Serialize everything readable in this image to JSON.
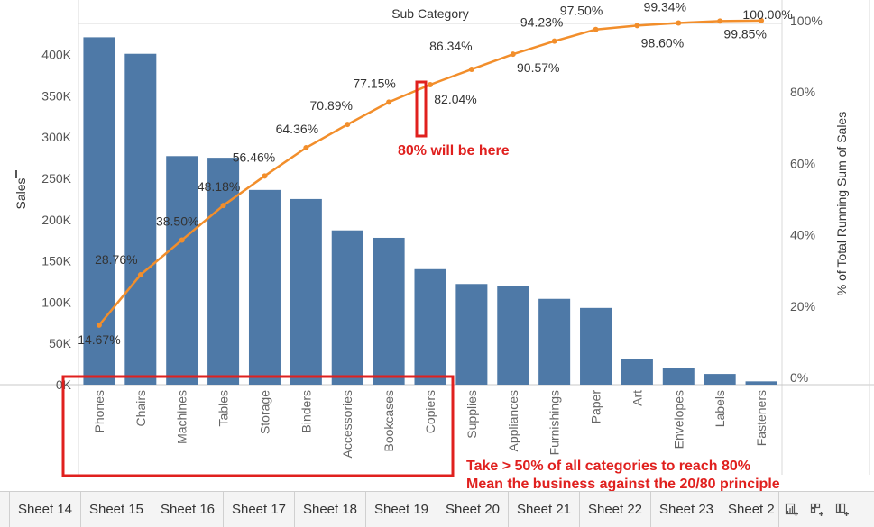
{
  "chart_data": {
    "type": "bar",
    "title": "Sub Category",
    "categories": [
      "Phones",
      "Chairs",
      "Machines",
      "Tables",
      "Storage",
      "Binders",
      "Accessories",
      "Bookcases",
      "Copiers",
      "Supplies",
      "Appliances",
      "Furnishings",
      "Paper",
      "Art",
      "Envelopes",
      "Labels",
      "Fasteners"
    ],
    "series": [
      {
        "type": "bar",
        "axis": "left",
        "color": "#4e79a7",
        "values": [
          421000,
          401000,
          277000,
          275000,
          236000,
          225000,
          187000,
          178000,
          140000,
          122000,
          120000,
          104000,
          93000,
          31000,
          20000,
          13000,
          4000
        ]
      },
      {
        "type": "line",
        "axis": "right",
        "color": "#f28e2b",
        "values": [
          14.67,
          28.76,
          38.5,
          48.18,
          56.46,
          64.36,
          70.89,
          77.15,
          82.04,
          86.34,
          90.57,
          94.23,
          97.5,
          98.6,
          99.34,
          99.85,
          100.0
        ],
        "labels": [
          "14.67%",
          "28.76%",
          "38.50%",
          "48.18%",
          "56.46%",
          "64.36%",
          "70.89%",
          "77.15%",
          "82.04%",
          "86.34%",
          "90.57%",
          "94.23%",
          "97.50%",
          "98.60%",
          "99.34%",
          "99.85%",
          "100.00%"
        ]
      }
    ],
    "ylabel": "Sales",
    "ylabel_right": "% of Total Running Sum of Sales",
    "ylim": [
      0,
      440000
    ],
    "y_ticks": [
      0,
      50000,
      100000,
      150000,
      200000,
      250000,
      300000,
      350000,
      400000
    ],
    "y_tick_labels": [
      "0K",
      "50K",
      "100K",
      "150K",
      "200K",
      "250K",
      "300K",
      "350K",
      "400K"
    ],
    "y2lim": [
      0,
      104.5
    ],
    "y2_ticks": [
      0,
      20,
      40,
      60,
      80,
      100
    ],
    "y2_tick_labels": [
      "0%",
      "20%",
      "40%",
      "60%",
      "80%",
      "100%"
    ],
    "grid": false,
    "annotations": {
      "marker_text": "80% will be here",
      "note_line1": "Take > 50% of all categories to reach 80%",
      "note_line2": "Mean the business against the 20/80 principle",
      "color": "#e0201e"
    }
  },
  "tabs": [
    "Sheet 14",
    "Sheet 15",
    "Sheet 16",
    "Sheet 17",
    "Sheet 18",
    "Sheet 19",
    "Sheet 20",
    "Sheet 21",
    "Sheet 22",
    "Sheet 23",
    "Sheet 2"
  ],
  "tab_icons": [
    "new-worksheet-icon",
    "new-dashboard-icon",
    "new-story-icon"
  ]
}
